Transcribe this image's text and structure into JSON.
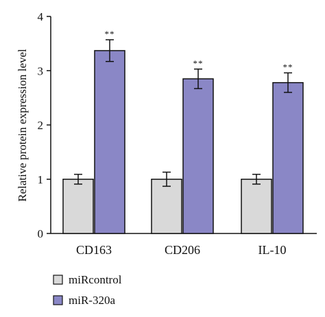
{
  "chart_data": {
    "type": "bar",
    "categories": [
      "CD163",
      "CD206",
      "IL-10"
    ],
    "series": [
      {
        "name": "miRcontrol",
        "values": [
          1.0,
          1.0,
          1.0
        ],
        "errors": [
          0.09,
          0.13,
          0.09
        ],
        "color": "#d9d9d9"
      },
      {
        "name": "miR-320a",
        "values": [
          3.37,
          2.85,
          2.78
        ],
        "errors": [
          0.2,
          0.18,
          0.18
        ],
        "color": "#8a87c6"
      }
    ],
    "significance": [
      "**",
      "**",
      "**"
    ],
    "ylabel": "Relative protein expression level",
    "xlabel": "",
    "ylim": [
      0,
      4
    ],
    "yticks": [
      "0",
      "1",
      "2",
      "3",
      "4"
    ],
    "grid": false,
    "legend_position": "bottom-left"
  }
}
